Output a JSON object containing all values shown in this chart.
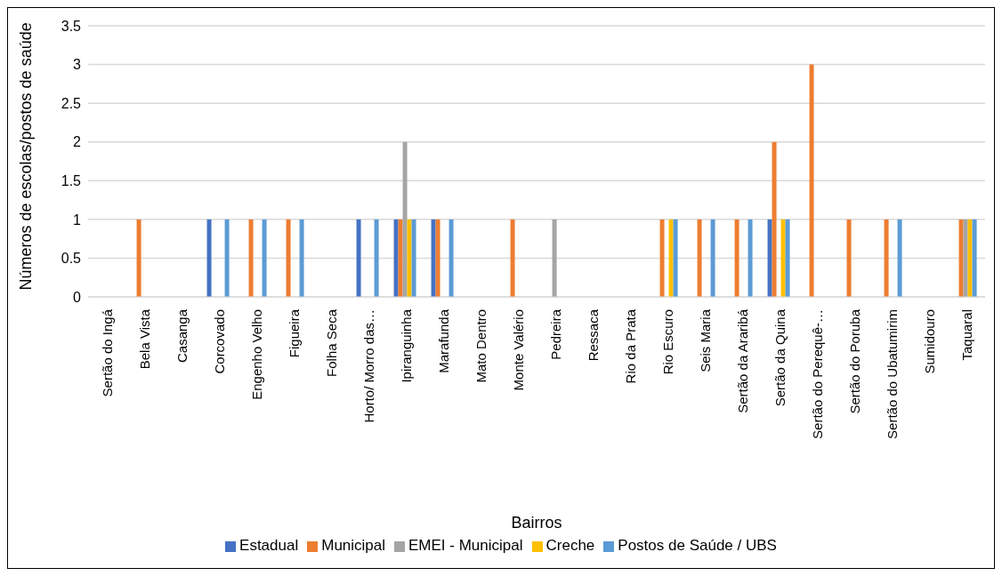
{
  "chart_data": {
    "type": "bar",
    "xlabel": "Bairros",
    "ylabel": "Números de escolas/postos de saúde",
    "categories": [
      "Sertão do Ingá",
      "Bela Vista",
      "Casanga",
      "Corcovado",
      "Engenho Velho",
      "Figueira",
      "Folha Seca",
      "Horto/ Morro das…",
      "Ipiranguinha",
      "Marafunda",
      "Mato Dentro",
      "Monte Valério",
      "Pedreira",
      "Ressaca",
      "Rio da Prata",
      "Rio Escuro",
      "Seis Maria",
      "Sertão da Araribá",
      "Sertão da Quina",
      "Sertão do Perequê-…",
      "Sertão do Poruba",
      "Sertão do Ubatumirim",
      "Sumidouro",
      "Taquaral"
    ],
    "series": [
      {
        "name": "Estadual",
        "color": "#4472c4",
        "values": [
          0,
          0,
          0,
          1,
          0,
          0,
          0,
          1,
          1,
          1,
          0,
          0,
          0,
          0,
          0,
          0,
          0,
          0,
          1,
          0,
          0,
          0,
          0,
          0
        ]
      },
      {
        "name": "Municipal",
        "color": "#ed7d31",
        "values": [
          0,
          1,
          0,
          0,
          1,
          1,
          0,
          0,
          1,
          1,
          0,
          1,
          0,
          0,
          0,
          1,
          1,
          1,
          2,
          3,
          1,
          1,
          0,
          1
        ]
      },
      {
        "name": "EMEI - Municipal",
        "color": "#a5a5a5",
        "values": [
          0,
          0,
          0,
          0,
          0,
          0,
          0,
          0,
          2,
          0,
          0,
          0,
          1,
          0,
          0,
          0,
          0,
          0,
          0,
          0,
          0,
          0,
          0,
          1
        ]
      },
      {
        "name": "Creche",
        "color": "#ffc000",
        "values": [
          0,
          0,
          0,
          0,
          0,
          0,
          0,
          0,
          1,
          0,
          0,
          0,
          0,
          0,
          0,
          1,
          0,
          0,
          1,
          0,
          0,
          0,
          0,
          1
        ]
      },
      {
        "name": "Postos de Saúde / UBS",
        "color": "#5b9bd5",
        "values": [
          0,
          0,
          0,
          1,
          1,
          1,
          0,
          1,
          1,
          1,
          0,
          0,
          0,
          0,
          0,
          1,
          1,
          1,
          1,
          0,
          0,
          1,
          0,
          1
        ]
      }
    ],
    "ylim": [
      0,
      3.5
    ],
    "yticks": [
      0,
      0.5,
      1,
      1.5,
      2,
      2.5,
      3,
      3.5
    ],
    "grid": "y",
    "legend": "bottom"
  }
}
